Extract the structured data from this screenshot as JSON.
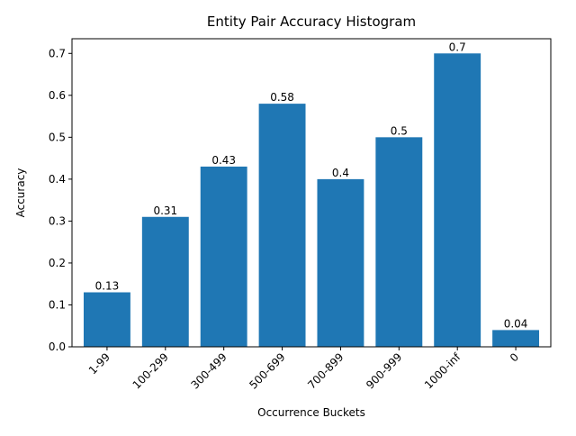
{
  "chart_data": {
    "type": "bar",
    "title": "Entity Pair Accuracy Histogram",
    "xlabel": "Occurrence Buckets",
    "ylabel": "Accuracy",
    "categories": [
      "1-99",
      "100-299",
      "300-499",
      "500-699",
      "700-899",
      "900-999",
      "1000-inf",
      "0"
    ],
    "values": [
      0.13,
      0.31,
      0.43,
      0.58,
      0.4,
      0.5,
      0.7,
      0.04
    ],
    "data_labels": [
      "0.13",
      "0.31",
      "0.43",
      "0.58",
      "0.4",
      "0.5",
      "0.7",
      "0.04"
    ],
    "y_ticks": [
      0.0,
      0.1,
      0.2,
      0.3,
      0.4,
      0.5,
      0.6,
      0.7
    ],
    "y_tick_labels": [
      "0.0",
      "0.1",
      "0.2",
      "0.3",
      "0.4",
      "0.5",
      "0.6",
      "0.7"
    ],
    "ylim": [
      0,
      0.735
    ],
    "grid": false,
    "bar_color": "#1f77b4",
    "x_tick_rotation_deg": 45
  }
}
